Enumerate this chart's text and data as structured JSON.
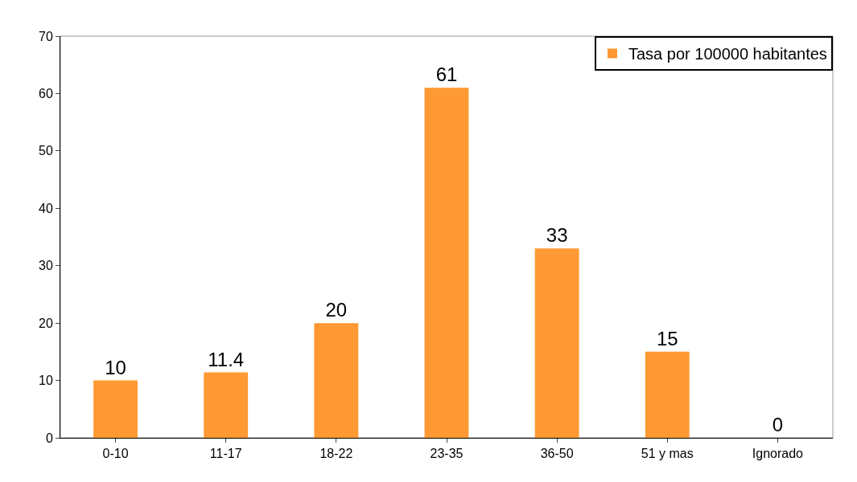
{
  "chart_data": {
    "type": "bar",
    "categories": [
      "0-10",
      "11-17",
      "18-22",
      "23-35",
      "36-50",
      "51 y mas",
      "Ignorado"
    ],
    "series": [
      {
        "name": "Tasa por 100000 habitantes",
        "color": "#ff9933",
        "values": [
          10,
          11.4,
          20,
          61,
          33,
          15,
          0
        ]
      }
    ],
    "ylim": [
      0,
      70
    ],
    "yticks": [
      0,
      10,
      20,
      30,
      40,
      50,
      60,
      70
    ],
    "data_labels": true,
    "grid": false,
    "legend": "top right"
  }
}
